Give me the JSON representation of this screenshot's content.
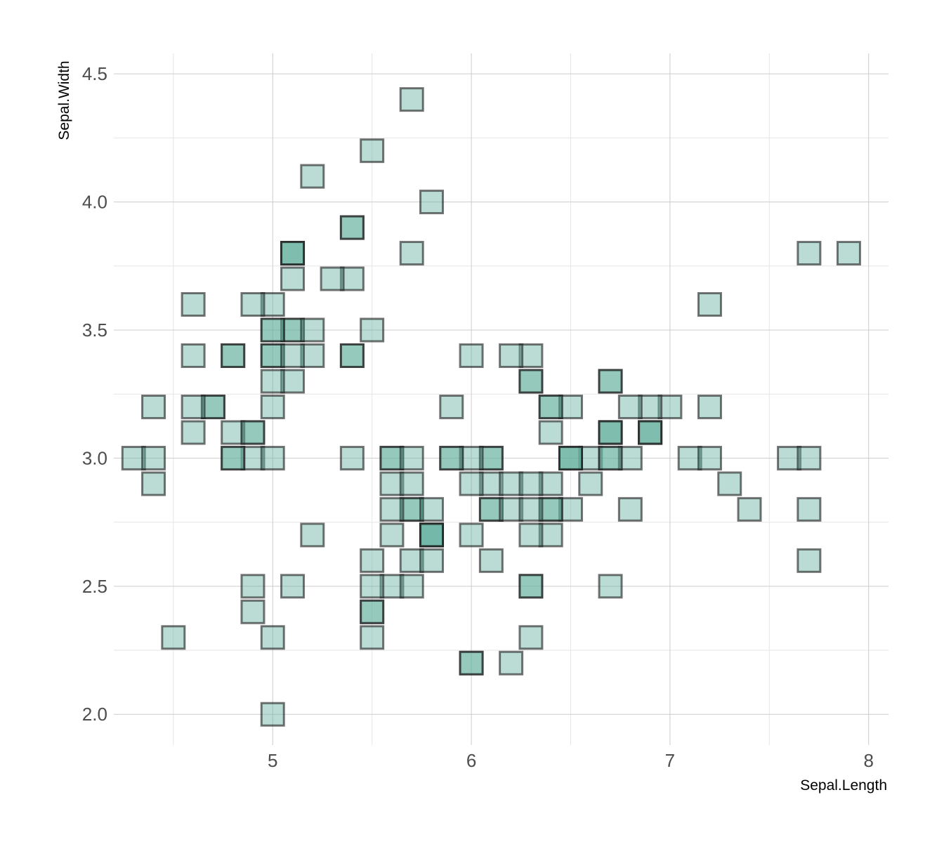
{
  "chart_data": {
    "type": "scatter",
    "xlabel": "Sepal.Length",
    "ylabel": "Sepal.Width",
    "xlim": [
      4.2,
      8.1
    ],
    "ylim": [
      1.88,
      4.58
    ],
    "x_ticks": [
      5,
      6,
      7,
      8
    ],
    "x_tick_labels": [
      "5",
      "6",
      "7",
      "8"
    ],
    "y_ticks": [
      2.0,
      2.5,
      3.0,
      3.5,
      4.0,
      4.5
    ],
    "y_tick_labels": [
      "2.0",
      "2.5",
      "3.0",
      "3.5",
      "4.0",
      "4.5"
    ],
    "grid": true,
    "legend": "none",
    "marker": "square",
    "fill_color": "#66b2a0",
    "fill_opacity": 0.45,
    "edge_color": "#1a1a1a",
    "edge_opacity": 0.6,
    "points": [
      {
        "x": 5.1,
        "y": 3.5
      },
      {
        "x": 4.9,
        "y": 3.0
      },
      {
        "x": 4.7,
        "y": 3.2
      },
      {
        "x": 4.6,
        "y": 3.1
      },
      {
        "x": 5.0,
        "y": 3.6
      },
      {
        "x": 5.4,
        "y": 3.9
      },
      {
        "x": 4.6,
        "y": 3.4
      },
      {
        "x": 5.0,
        "y": 3.4
      },
      {
        "x": 4.4,
        "y": 2.9
      },
      {
        "x": 4.9,
        "y": 3.1
      },
      {
        "x": 5.4,
        "y": 3.7
      },
      {
        "x": 4.8,
        "y": 3.4
      },
      {
        "x": 4.8,
        "y": 3.0
      },
      {
        "x": 4.3,
        "y": 3.0
      },
      {
        "x": 5.8,
        "y": 4.0
      },
      {
        "x": 5.7,
        "y": 4.4
      },
      {
        "x": 5.4,
        "y": 3.9
      },
      {
        "x": 5.1,
        "y": 3.5
      },
      {
        "x": 5.7,
        "y": 3.8
      },
      {
        "x": 5.1,
        "y": 3.8
      },
      {
        "x": 5.4,
        "y": 3.4
      },
      {
        "x": 5.1,
        "y": 3.7
      },
      {
        "x": 4.6,
        "y": 3.6
      },
      {
        "x": 5.1,
        "y": 3.3
      },
      {
        "x": 4.8,
        "y": 3.4
      },
      {
        "x": 5.0,
        "y": 3.0
      },
      {
        "x": 5.0,
        "y": 3.4
      },
      {
        "x": 5.2,
        "y": 3.5
      },
      {
        "x": 5.2,
        "y": 3.4
      },
      {
        "x": 4.7,
        "y": 3.2
      },
      {
        "x": 4.8,
        "y": 3.1
      },
      {
        "x": 5.4,
        "y": 3.4
      },
      {
        "x": 5.2,
        "y": 4.1
      },
      {
        "x": 5.5,
        "y": 4.2
      },
      {
        "x": 4.9,
        "y": 3.1
      },
      {
        "x": 5.0,
        "y": 3.2
      },
      {
        "x": 5.5,
        "y": 3.5
      },
      {
        "x": 4.9,
        "y": 3.6
      },
      {
        "x": 4.4,
        "y": 3.0
      },
      {
        "x": 5.1,
        "y": 3.4
      },
      {
        "x": 5.0,
        "y": 3.5
      },
      {
        "x": 4.5,
        "y": 2.3
      },
      {
        "x": 4.4,
        "y": 3.2
      },
      {
        "x": 5.0,
        "y": 3.5
      },
      {
        "x": 5.1,
        "y": 3.8
      },
      {
        "x": 4.8,
        "y": 3.0
      },
      {
        "x": 5.1,
        "y": 3.8
      },
      {
        "x": 4.6,
        "y": 3.2
      },
      {
        "x": 5.3,
        "y": 3.7
      },
      {
        "x": 5.0,
        "y": 3.3
      },
      {
        "x": 7.0,
        "y": 3.2
      },
      {
        "x": 6.4,
        "y": 3.2
      },
      {
        "x": 6.9,
        "y": 3.1
      },
      {
        "x": 5.5,
        "y": 2.3
      },
      {
        "x": 6.5,
        "y": 2.8
      },
      {
        "x": 5.7,
        "y": 2.8
      },
      {
        "x": 6.3,
        "y": 3.3
      },
      {
        "x": 4.9,
        "y": 2.4
      },
      {
        "x": 6.6,
        "y": 2.9
      },
      {
        "x": 5.2,
        "y": 2.7
      },
      {
        "x": 5.0,
        "y": 2.0
      },
      {
        "x": 5.9,
        "y": 3.0
      },
      {
        "x": 6.0,
        "y": 2.2
      },
      {
        "x": 6.1,
        "y": 2.9
      },
      {
        "x": 5.6,
        "y": 2.9
      },
      {
        "x": 6.7,
        "y": 3.1
      },
      {
        "x": 5.6,
        "y": 3.0
      },
      {
        "x": 5.8,
        "y": 2.7
      },
      {
        "x": 6.2,
        "y": 2.2
      },
      {
        "x": 5.6,
        "y": 2.5
      },
      {
        "x": 5.9,
        "y": 3.2
      },
      {
        "x": 6.1,
        "y": 2.8
      },
      {
        "x": 6.3,
        "y": 2.5
      },
      {
        "x": 6.1,
        "y": 2.8
      },
      {
        "x": 6.4,
        "y": 2.9
      },
      {
        "x": 6.6,
        "y": 3.0
      },
      {
        "x": 6.8,
        "y": 2.8
      },
      {
        "x": 6.7,
        "y": 3.0
      },
      {
        "x": 6.0,
        "y": 2.9
      },
      {
        "x": 5.7,
        "y": 2.6
      },
      {
        "x": 5.5,
        "y": 2.4
      },
      {
        "x": 5.5,
        "y": 2.4
      },
      {
        "x": 5.8,
        "y": 2.7
      },
      {
        "x": 6.0,
        "y": 2.7
      },
      {
        "x": 5.4,
        "y": 3.0
      },
      {
        "x": 6.0,
        "y": 3.4
      },
      {
        "x": 6.7,
        "y": 3.1
      },
      {
        "x": 6.3,
        "y": 2.3
      },
      {
        "x": 5.6,
        "y": 3.0
      },
      {
        "x": 5.5,
        "y": 2.5
      },
      {
        "x": 5.5,
        "y": 2.6
      },
      {
        "x": 6.1,
        "y": 3.0
      },
      {
        "x": 5.8,
        "y": 2.6
      },
      {
        "x": 5.0,
        "y": 2.3
      },
      {
        "x": 5.6,
        "y": 2.7
      },
      {
        "x": 5.7,
        "y": 3.0
      },
      {
        "x": 5.7,
        "y": 2.9
      },
      {
        "x": 6.2,
        "y": 2.9
      },
      {
        "x": 5.1,
        "y": 2.5
      },
      {
        "x": 5.7,
        "y": 2.8
      },
      {
        "x": 6.3,
        "y": 3.3
      },
      {
        "x": 5.8,
        "y": 2.7
      },
      {
        "x": 7.1,
        "y": 3.0
      },
      {
        "x": 6.3,
        "y": 2.9
      },
      {
        "x": 6.5,
        "y": 3.0
      },
      {
        "x": 7.6,
        "y": 3.0
      },
      {
        "x": 4.9,
        "y": 2.5
      },
      {
        "x": 7.3,
        "y": 2.9
      },
      {
        "x": 6.7,
        "y": 2.5
      },
      {
        "x": 7.2,
        "y": 3.6
      },
      {
        "x": 6.5,
        "y": 3.2
      },
      {
        "x": 6.4,
        "y": 2.7
      },
      {
        "x": 6.8,
        "y": 3.0
      },
      {
        "x": 5.7,
        "y": 2.5
      },
      {
        "x": 5.8,
        "y": 2.8
      },
      {
        "x": 6.4,
        "y": 3.2
      },
      {
        "x": 6.5,
        "y": 3.0
      },
      {
        "x": 7.7,
        "y": 3.8
      },
      {
        "x": 7.7,
        "y": 2.6
      },
      {
        "x": 6.0,
        "y": 2.2
      },
      {
        "x": 6.9,
        "y": 3.2
      },
      {
        "x": 5.6,
        "y": 2.8
      },
      {
        "x": 7.7,
        "y": 2.8
      },
      {
        "x": 6.3,
        "y": 2.7
      },
      {
        "x": 6.7,
        "y": 3.3
      },
      {
        "x": 7.2,
        "y": 3.2
      },
      {
        "x": 6.2,
        "y": 2.8
      },
      {
        "x": 6.1,
        "y": 3.0
      },
      {
        "x": 6.4,
        "y": 2.8
      },
      {
        "x": 7.2,
        "y": 3.0
      },
      {
        "x": 7.4,
        "y": 2.8
      },
      {
        "x": 7.9,
        "y": 3.8
      },
      {
        "x": 6.4,
        "y": 2.8
      },
      {
        "x": 6.3,
        "y": 2.8
      },
      {
        "x": 6.1,
        "y": 2.6
      },
      {
        "x": 7.7,
        "y": 3.0
      },
      {
        "x": 6.3,
        "y": 3.4
      },
      {
        "x": 6.4,
        "y": 3.1
      },
      {
        "x": 6.0,
        "y": 3.0
      },
      {
        "x": 6.9,
        "y": 3.1
      },
      {
        "x": 6.7,
        "y": 3.1
      },
      {
        "x": 6.9,
        "y": 3.1
      },
      {
        "x": 5.8,
        "y": 2.7
      },
      {
        "x": 6.8,
        "y": 3.2
      },
      {
        "x": 6.7,
        "y": 3.3
      },
      {
        "x": 6.7,
        "y": 3.0
      },
      {
        "x": 6.3,
        "y": 2.5
      },
      {
        "x": 6.5,
        "y": 3.0
      },
      {
        "x": 6.2,
        "y": 3.4
      },
      {
        "x": 5.9,
        "y": 3.0
      }
    ]
  }
}
